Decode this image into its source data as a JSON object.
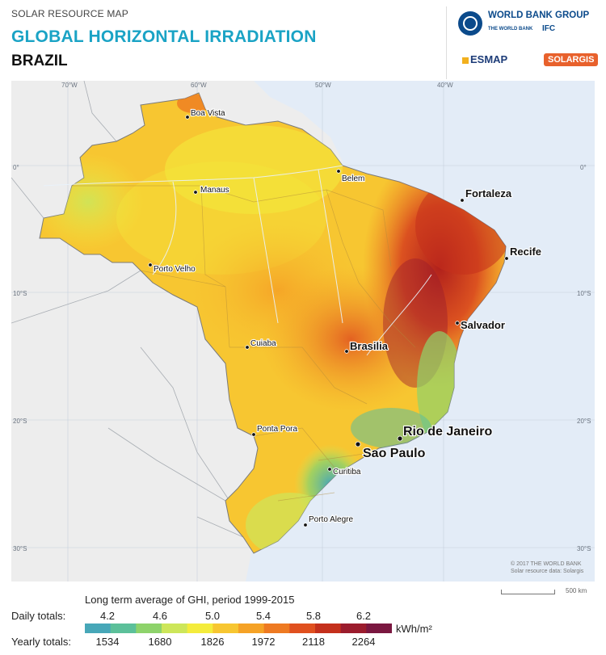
{
  "header": {
    "subtitle": "SOLAR RESOURCE MAP",
    "title": "GLOBAL HORIZONTAL IRRADIATION",
    "country": "BRAZIL"
  },
  "logos": {
    "world_bank": "WORLD BANK GROUP",
    "world_bank_sub": "THE WORLD BANK",
    "ifc": "IFC",
    "esmap": "ESMAP",
    "solargis": "SOLARGIS"
  },
  "map": {
    "longitude_labels": [
      "70°W",
      "60°W",
      "50°W",
      "40°W"
    ],
    "latitude_labels": [
      "0°",
      "10°S",
      "20°S",
      "30°S"
    ],
    "cities": [
      {
        "name": "Boa Vista",
        "size": "small"
      },
      {
        "name": "Manaus",
        "size": "small"
      },
      {
        "name": "Belem",
        "size": "small"
      },
      {
        "name": "Fortaleza",
        "size": "medium"
      },
      {
        "name": "Recife",
        "size": "medium"
      },
      {
        "name": "Porto Velho",
        "size": "small"
      },
      {
        "name": "Salvador",
        "size": "medium"
      },
      {
        "name": "Cuiaba",
        "size": "small"
      },
      {
        "name": "Brasilia",
        "size": "medium"
      },
      {
        "name": "Ponta Pora",
        "size": "small"
      },
      {
        "name": "Rio de Janeiro",
        "size": "large"
      },
      {
        "name": "Sao Paulo",
        "size": "large"
      },
      {
        "name": "Curitiba",
        "size": "small"
      },
      {
        "name": "Porto Alegre",
        "size": "small"
      }
    ],
    "credits": [
      "© 2017 THE WORLD BANK",
      "Solar resource data: Solargis"
    ],
    "scale_label": "500 km",
    "colors": {
      "ocean": "#e3ecf7",
      "land_outside": "#ededed",
      "border": "#9aa0a6"
    }
  },
  "legend": {
    "title": "Long term average of GHI, period 1999-2015",
    "daily_label": "Daily totals:",
    "yearly_label": "Yearly totals:",
    "daily_ticks": [
      "4.2",
      "4.6",
      "5.0",
      "5.4",
      "5.8",
      "6.2"
    ],
    "yearly_ticks": [
      "1534",
      "1680",
      "1826",
      "1972",
      "2118",
      "2264"
    ],
    "unit": "kWh/m²",
    "colors": [
      "#47a7b8",
      "#5cc09a",
      "#8ed36b",
      "#cde65a",
      "#f4ec3c",
      "#f7c631",
      "#f5a226",
      "#ee7a22",
      "#e0501f",
      "#c4301c",
      "#9b1c2d",
      "#7a1740"
    ]
  }
}
